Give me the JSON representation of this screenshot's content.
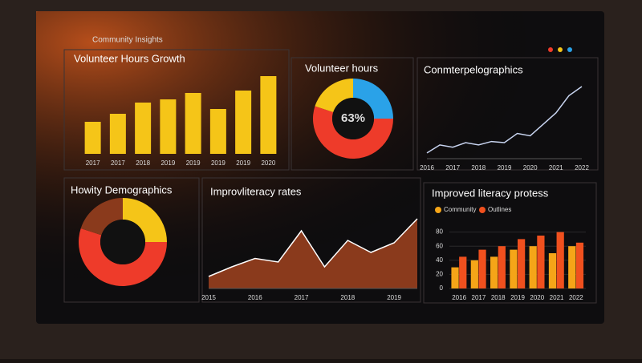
{
  "header": {
    "title": "Community Insights"
  },
  "chart_data": [
    {
      "type": "bar",
      "title": "Volunteer Hours Growth",
      "categories": [
        "2017",
        "2017",
        "2018",
        "2019",
        "2019",
        "2019",
        "2019",
        "2020"
      ],
      "values": [
        40,
        50,
        64,
        68,
        76,
        56,
        79,
        97
      ],
      "color": "#f5c518",
      "ylim": [
        0,
        100
      ]
    },
    {
      "type": "donut",
      "title": "Volunteer hours",
      "center_label": "63%",
      "categories": [
        "Blue",
        "Red",
        "Yellow"
      ],
      "values": [
        25,
        55,
        20
      ],
      "colors": [
        "#2aa2e8",
        "#ee3b2a",
        "#f5c518"
      ]
    },
    {
      "type": "line",
      "title": "Conmterpelographics",
      "categories": [
        "2016",
        null,
        "2017",
        null,
        "2018",
        null,
        "2019",
        null,
        "2020",
        null,
        "2021",
        null,
        "2022"
      ],
      "values": [
        5,
        12,
        10,
        14,
        12,
        15,
        14,
        22,
        20,
        30,
        40,
        55,
        63
      ],
      "color": "#c8d4f0",
      "ylim": [
        0,
        70
      ]
    },
    {
      "type": "donut",
      "title": "Howity Demographics",
      "categories": [
        "Yellow",
        "Red",
        "Brown"
      ],
      "values": [
        25,
        55,
        20
      ],
      "colors": [
        "#f5c518",
        "#ee3b2a",
        "#8a3a1c"
      ]
    },
    {
      "type": "area",
      "title": "Improvliteracy rates",
      "categories": [
        "2015",
        null,
        "2016",
        null,
        "2017",
        null,
        "2018",
        null,
        "2019",
        null
      ],
      "values": [
        10,
        18,
        25,
        22,
        48,
        18,
        40,
        30,
        38,
        58
      ],
      "color": "#8a3a1c",
      "ylim": [
        0,
        70
      ]
    },
    {
      "type": "groupbar",
      "title": "Improved literacy protess",
      "categories": [
        "2016",
        "2017",
        "2018",
        "2019",
        "2020",
        "2021",
        "2022"
      ],
      "series": [
        {
          "name": "Community",
          "color": "#f5a518",
          "values": [
            30,
            40,
            45,
            55,
            60,
            50,
            60
          ]
        },
        {
          "name": "Outlines",
          "color": "#f0501e",
          "values": [
            45,
            55,
            60,
            70,
            75,
            80,
            65
          ]
        }
      ],
      "ylim": [
        0,
        100
      ],
      "yticks": [
        0,
        20,
        40,
        60,
        80
      ]
    }
  ]
}
